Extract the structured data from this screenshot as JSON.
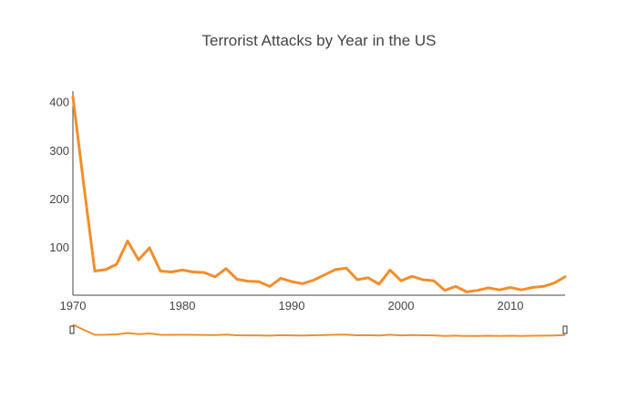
{
  "chart_data": {
    "type": "line",
    "title": "Terrorist Attacks by Year in the US",
    "xlabel": "",
    "ylabel": "",
    "xlim": [
      1970,
      2015
    ],
    "ylim": [
      0,
      422
    ],
    "x_ticks": [
      1970,
      1980,
      1990,
      2000,
      2010
    ],
    "y_ticks": [
      100,
      200,
      300,
      400
    ],
    "grid": false,
    "range_slider": true,
    "line_color": "#f28e2b",
    "series": [
      {
        "x": [
          1970,
          1971,
          1972,
          1973,
          1974,
          1975,
          1976,
          1977,
          1978,
          1979,
          1980,
          1981,
          1982,
          1983,
          1984,
          1985,
          1986,
          1987,
          1988,
          1989,
          1990,
          1991,
          1992,
          1993,
          1994,
          1995,
          1996,
          1997,
          1998,
          1999,
          2000,
          2001,
          2002,
          2003,
          2004,
          2005,
          2006,
          2007,
          2008,
          2009,
          2010,
          2011,
          2012,
          2013,
          2014,
          2015
        ],
        "y": [
          410,
          227,
          50,
          53,
          64,
          112,
          73,
          98,
          50,
          48,
          52,
          48,
          47,
          38,
          55,
          33,
          29,
          28,
          18,
          35,
          28,
          24,
          31,
          42,
          53,
          56,
          32,
          36,
          23,
          52,
          30,
          39,
          32,
          30,
          10,
          18,
          7,
          10,
          15,
          11,
          16,
          11,
          16,
          18,
          25,
          38
        ]
      }
    ]
  }
}
